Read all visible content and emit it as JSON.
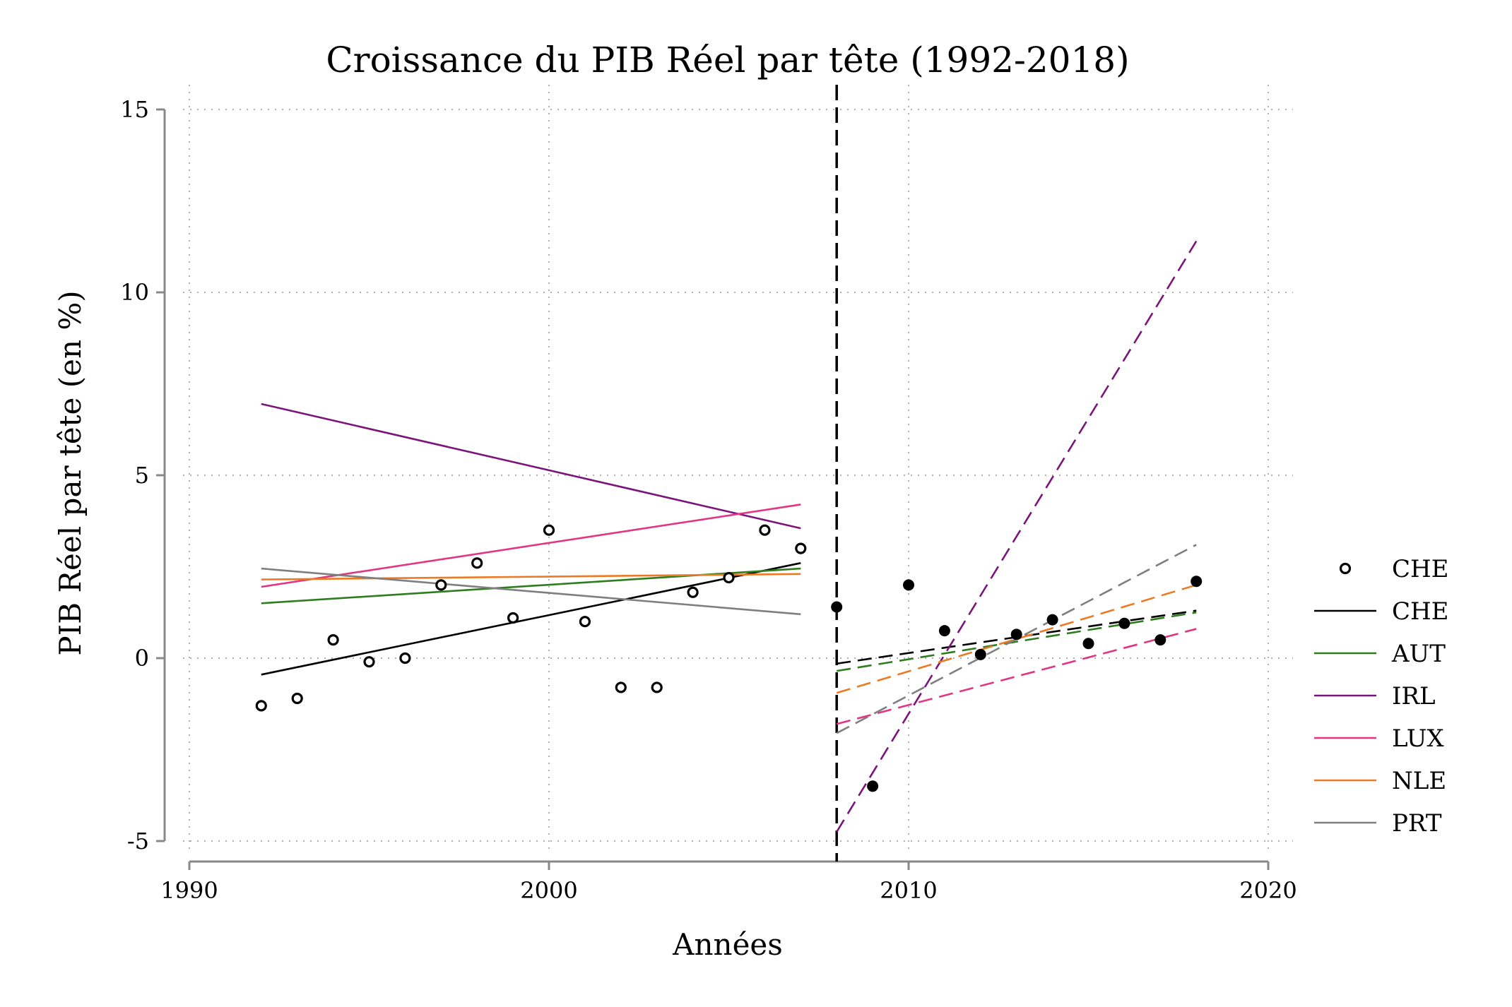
{
  "chart_data": {
    "type": "scatter",
    "title": "Croissance du PIB Réel par tête (1992-2018)",
    "xlabel": "Années",
    "ylabel": "PIB Réel par tête (en %)",
    "xlim": [
      1990,
      2020
    ],
    "ylim": [
      -5,
      15
    ],
    "x_ticks": [
      1990,
      2000,
      2010,
      2020
    ],
    "y_ticks": [
      -5,
      0,
      5,
      10,
      15
    ],
    "x_tick_labels": [
      "1990",
      "2000",
      "2010",
      "2020"
    ],
    "y_tick_labels": [
      "-5",
      "0",
      "5",
      "10",
      "15"
    ],
    "grid": true,
    "break_year": 2008,
    "legend_position": "right",
    "scatter": {
      "name": "CHE",
      "pre_points": [
        [
          1992,
          -1.3
        ],
        [
          1993,
          -1.1
        ],
        [
          1994,
          0.5
        ],
        [
          1995,
          -0.1
        ],
        [
          1996,
          0.0
        ],
        [
          1997,
          2.0
        ],
        [
          1998,
          2.6
        ],
        [
          1999,
          1.1
        ],
        [
          2000,
          3.5
        ],
        [
          2001,
          1.0
        ],
        [
          2002,
          -0.8
        ],
        [
          2003,
          -0.8
        ],
        [
          2004,
          1.8
        ],
        [
          2005,
          2.2
        ],
        [
          2006,
          3.5
        ],
        [
          2007,
          3.0
        ]
      ],
      "post_points": [
        [
          2008,
          1.4
        ],
        [
          2009,
          -3.5
        ],
        [
          2010,
          2.0
        ],
        [
          2011,
          0.75
        ],
        [
          2012,
          0.1
        ],
        [
          2013,
          0.65
        ],
        [
          2014,
          1.05
        ],
        [
          2015,
          0.4
        ],
        [
          2016,
          0.95
        ],
        [
          2017,
          0.5
        ],
        [
          2018,
          2.1
        ]
      ]
    },
    "series": [
      {
        "name": "CHE",
        "color": "#000000",
        "pre": [
          [
            1992,
            -0.45
          ],
          [
            2007,
            2.6
          ]
        ],
        "post": [
          [
            2008,
            -0.15
          ],
          [
            2018,
            1.3
          ]
        ]
      },
      {
        "name": "AUT",
        "color": "#2e7d1e",
        "pre": [
          [
            1992,
            1.5
          ],
          [
            2007,
            2.45
          ]
        ],
        "post": [
          [
            2008,
            -0.35
          ],
          [
            2018,
            1.25
          ]
        ]
      },
      {
        "name": "IRL",
        "color": "#7b147b",
        "pre": [
          [
            1992,
            6.95
          ],
          [
            2007,
            3.55
          ]
        ],
        "post": [
          [
            2008,
            -4.75
          ],
          [
            2018,
            11.4
          ]
        ]
      },
      {
        "name": "LUX",
        "color": "#e23582",
        "pre": [
          [
            1992,
            1.95
          ],
          [
            2007,
            4.2
          ]
        ],
        "post": [
          [
            2008,
            -1.8
          ],
          [
            2018,
            0.8
          ]
        ]
      },
      {
        "name": "NLE",
        "color": "#ec7a25",
        "pre": [
          [
            1992,
            2.15
          ],
          [
            2007,
            2.3
          ]
        ],
        "post": [
          [
            2008,
            -0.95
          ],
          [
            2018,
            2.0
          ]
        ]
      },
      {
        "name": "PRT",
        "color": "#7f7f7f",
        "pre": [
          [
            1992,
            2.45
          ],
          [
            2007,
            1.2
          ]
        ],
        "post": [
          [
            2008,
            -2.05
          ],
          [
            2018,
            3.1
          ]
        ]
      }
    ]
  }
}
